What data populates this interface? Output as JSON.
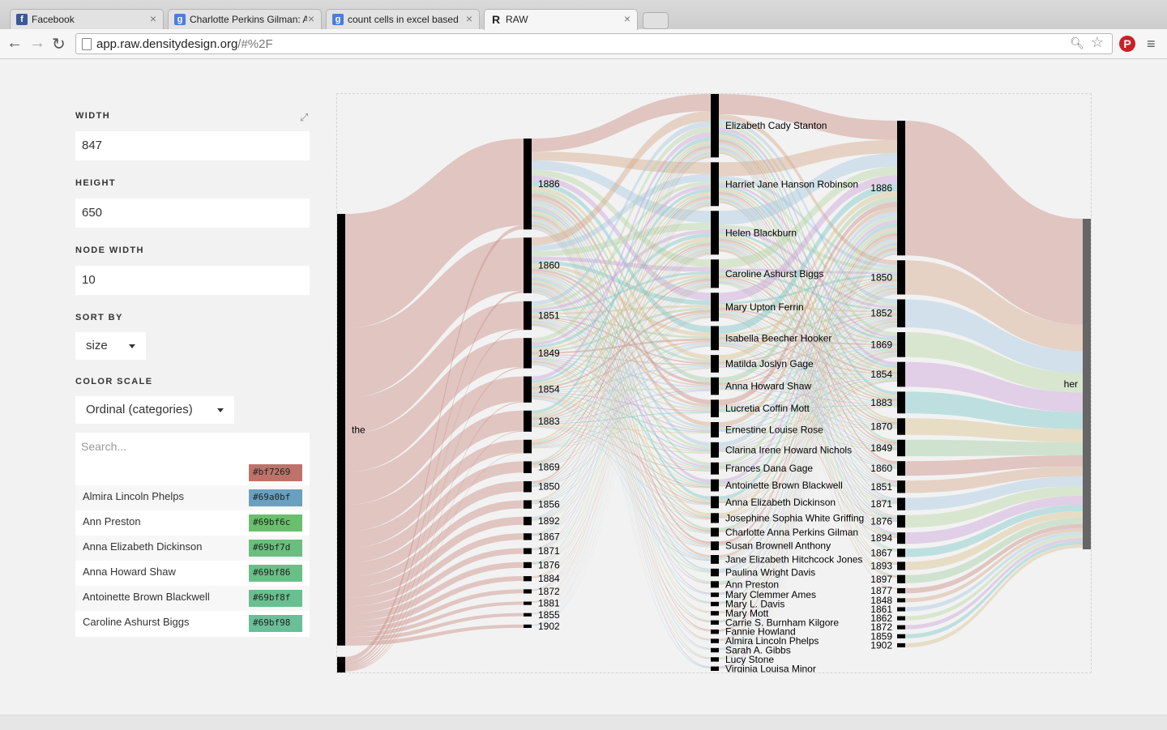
{
  "browser": {
    "tabs": [
      {
        "title": "Facebook",
        "icon": "facebook-icon",
        "color": "#3b5998"
      },
      {
        "title": "Charlotte Perkins Gilman: A",
        "icon": "google-icon",
        "color": "#4a7fd9"
      },
      {
        "title": "count cells in excel based",
        "icon": "google-icon",
        "color": "#4a7fd9"
      },
      {
        "title": "RAW",
        "icon": "raw-logo-icon",
        "color": "#222222"
      }
    ],
    "url_host": "app.raw.densitydesign.org",
    "url_path": "/#%2F"
  },
  "controls": {
    "width_label": "WIDTH",
    "width_value": "847",
    "height_label": "HEIGHT",
    "height_value": "650",
    "node_width_label": "NODE WIDTH",
    "node_width_value": "10",
    "sort_label": "SORT BY",
    "sort_value": "size",
    "color_label": "COLOR SCALE",
    "color_value": "Ordinal (categories)",
    "search_placeholder": "Search...",
    "color_items": [
      {
        "name": "",
        "hex": "#bf7269"
      },
      {
        "name": "Almira Lincoln Phelps",
        "hex": "#69a0bf"
      },
      {
        "name": "Ann Preston",
        "hex": "#69bf6c"
      },
      {
        "name": "Anna Elizabeth Dickinson",
        "hex": "#69bf7d"
      },
      {
        "name": "Anna Howard Shaw",
        "hex": "#69bf86"
      },
      {
        "name": "Antoinette Brown Blackwell",
        "hex": "#69bf8f"
      },
      {
        "name": "Caroline Ashurst Biggs",
        "hex": "#69bf98"
      }
    ]
  },
  "chart_data": {
    "type": "alluvial",
    "columns": [
      {
        "nodes": [
          {
            "label": "the",
            "weight": 390
          },
          {
            "label": "",
            "weight": 17
          }
        ]
      },
      {
        "nodes": [
          {
            "label": "1886",
            "weight": 108
          },
          {
            "label": "1860",
            "weight": 66
          },
          {
            "label": "1851",
            "weight": 34
          },
          {
            "label": "1849",
            "weight": 36
          },
          {
            "label": "1854",
            "weight": 31
          },
          {
            "label": "1883",
            "weight": 25
          },
          {
            "label": "",
            "weight": 16
          },
          {
            "label": "1869",
            "weight": 14
          },
          {
            "label": "1850",
            "weight": 13
          },
          {
            "label": "1856",
            "weight": 10
          },
          {
            "label": "1892",
            "weight": 10
          },
          {
            "label": "1867",
            "weight": 8
          },
          {
            "label": "1871",
            "weight": 7
          },
          {
            "label": "1876",
            "weight": 7
          },
          {
            "label": "1884",
            "weight": 6
          },
          {
            "label": "1872",
            "weight": 5
          },
          {
            "label": "1881",
            "weight": 4
          },
          {
            "label": "1855",
            "weight": 4
          },
          {
            "label": "1902",
            "weight": 4
          }
        ]
      },
      {
        "nodes": [
          {
            "label": "Elizabeth Cady Stanton",
            "weight": 58
          },
          {
            "label": "Harriet Jane Hanson Robinson",
            "weight": 40
          },
          {
            "label": "Helen Blackburn",
            "weight": 40
          },
          {
            "label": "Caroline Ashurst Biggs",
            "weight": 26
          },
          {
            "label": "Mary Upton Ferrin",
            "weight": 26
          },
          {
            "label": "Isabella Beecher Hooker",
            "weight": 22
          },
          {
            "label": "Matilda Joslyn Gage",
            "weight": 16
          },
          {
            "label": "Anna Howard Shaw",
            "weight": 16
          },
          {
            "label": "Lucretia Coffin Mott",
            "weight": 16
          },
          {
            "label": "Ernestine Louise Rose",
            "weight": 14
          },
          {
            "label": "Clarina Irene Howard Nichols",
            "weight": 14
          },
          {
            "label": "Frances Dana Gage",
            "weight": 11
          },
          {
            "label": "Antoinette Brown Blackwell",
            "weight": 11
          },
          {
            "label": "Anna Elizabeth Dickinson",
            "weight": 11
          },
          {
            "label": "Josephine Sophia White Griffing",
            "weight": 9
          },
          {
            "label": "Charlotte Anna Perkins Gilman",
            "weight": 8
          },
          {
            "label": "Susan Brownell Anthony",
            "weight": 8
          },
          {
            "label": "Jane Elizabeth Hitchcock Jones",
            "weight": 8
          },
          {
            "label": "Paulina Wright Davis",
            "weight": 7
          },
          {
            "label": "Ann Preston",
            "weight": 6
          },
          {
            "label": "Mary Clemmer Ames",
            "weight": 4
          },
          {
            "label": "Mary L. Davis",
            "weight": 4
          },
          {
            "label": "Mary Mott",
            "weight": 4
          },
          {
            "label": "Carrie S. Burnham Kilgore",
            "weight": 4
          },
          {
            "label": "Fannie Howland",
            "weight": 4
          },
          {
            "label": "Almira Lincoln Phelps",
            "weight": 4
          },
          {
            "label": "Sarah A. Gibbs",
            "weight": 4
          },
          {
            "label": "Lucy Stone",
            "weight": 4
          },
          {
            "label": "Virginia Louisa Minor",
            "weight": 4
          }
        ]
      },
      {
        "nodes": [
          {
            "label": "1886",
            "weight": 130
          },
          {
            "label": "1850",
            "weight": 33
          },
          {
            "label": "1852",
            "weight": 27
          },
          {
            "label": "1869",
            "weight": 24
          },
          {
            "label": "1854",
            "weight": 24
          },
          {
            "label": "1883",
            "weight": 21
          },
          {
            "label": "1870",
            "weight": 16
          },
          {
            "label": "1849",
            "weight": 16
          },
          {
            "label": "1860",
            "weight": 14
          },
          {
            "label": "1851",
            "weight": 12
          },
          {
            "label": "1871",
            "weight": 12
          },
          {
            "label": "1876",
            "weight": 12
          },
          {
            "label": "1894",
            "weight": 11
          },
          {
            "label": "1867",
            "weight": 8
          },
          {
            "label": "1893",
            "weight": 8
          },
          {
            "label": "1897",
            "weight": 8
          },
          {
            "label": "1877",
            "weight": 5
          },
          {
            "label": "1848",
            "weight": 4
          },
          {
            "label": "1861",
            "weight": 4
          },
          {
            "label": "1862",
            "weight": 4
          },
          {
            "label": "1872",
            "weight": 4
          },
          {
            "label": "1859",
            "weight": 4
          },
          {
            "label": "1902",
            "weight": 4
          }
        ]
      },
      {
        "nodes": [
          {
            "label": "her",
            "weight": 407
          }
        ]
      }
    ],
    "palette": [
      "#c98f84",
      "#d4ab8c",
      "#a9c9e0",
      "#b8d6a3",
      "#c9a3d6",
      "#7ec8c8",
      "#d9c48f",
      "#a3cfa5"
    ]
  }
}
